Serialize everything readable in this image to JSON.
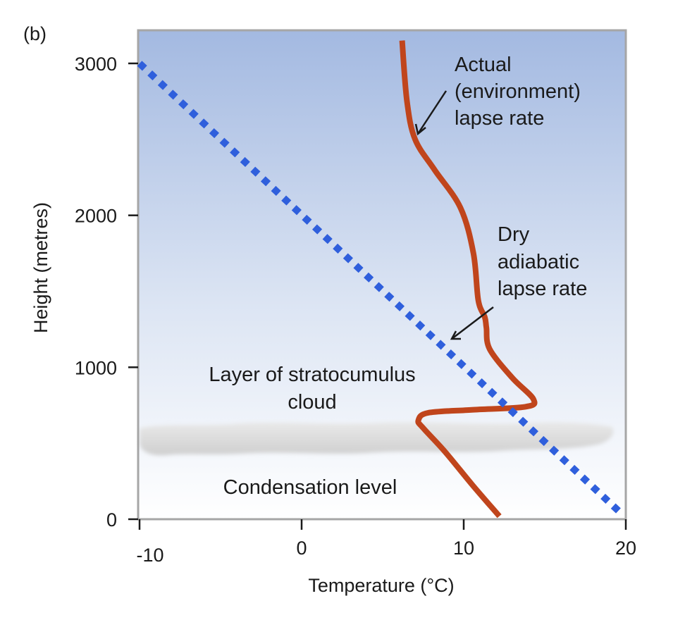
{
  "panel_label": "(b)",
  "chart_data": {
    "type": "line",
    "title": "",
    "xlabel": "Temperature (°C)",
    "ylabel": "Height (metres)",
    "xlim": [
      -10,
      20
    ],
    "ylim": [
      0,
      3100
    ],
    "x_ticks": [
      -10,
      0,
      10,
      20
    ],
    "x_tick_labels": [
      "-10",
      "0",
      "10",
      "20"
    ],
    "y_ticks": [
      0,
      1000,
      2000,
      3000
    ],
    "y_tick_labels": [
      "0",
      "1000",
      "2000",
      "3000"
    ],
    "grid": false,
    "series": [
      {
        "name": "Actual (environment) lapse rate",
        "style": "solid",
        "color": "#c0451c",
        "points": [
          [
            12.2,
            20
          ],
          [
            10.5,
            230
          ],
          [
            8.8,
            450
          ],
          [
            7.5,
            600
          ],
          [
            7.2,
            650
          ],
          [
            7.8,
            700
          ],
          [
            10.5,
            720
          ],
          [
            13.8,
            740
          ],
          [
            14.3,
            790
          ],
          [
            13.0,
            930
          ],
          [
            11.6,
            1120
          ],
          [
            11.4,
            1260
          ],
          [
            11.3,
            1330
          ],
          [
            10.9,
            1440
          ],
          [
            10.6,
            1750
          ],
          [
            9.8,
            2050
          ],
          [
            8.2,
            2300
          ],
          [
            7.0,
            2500
          ],
          [
            6.5,
            2750
          ],
          [
            6.2,
            3150
          ]
        ]
      },
      {
        "name": "Dry adiabatic lapse rate",
        "style": "dotted",
        "color": "#2f5fdc",
        "points": [
          [
            -10,
            3000
          ],
          [
            19.7,
            40
          ]
        ]
      }
    ],
    "annotations": [
      {
        "lines": [
          "Actual",
          "(environment)",
          "lapse rate"
        ],
        "arrow_to_series": "Actual (environment) lapse rate",
        "arrow_target": [
          7.2,
          2550
        ]
      },
      {
        "lines": [
          "Dry",
          "adiabatic",
          "lapse rate"
        ],
        "arrow_to_series": "Dry adiabatic lapse rate",
        "arrow_target": [
          9.2,
          1200
        ]
      },
      {
        "lines": [
          "Layer of stratocumulus",
          "cloud"
        ]
      },
      {
        "lines": [
          "Condensation level"
        ]
      }
    ]
  },
  "colors": {
    "sky_top": "#a3b9e1",
    "sky_bottom": "#ffffff",
    "frame": "#a6a6a6",
    "cloud": "#d4d4d4"
  }
}
